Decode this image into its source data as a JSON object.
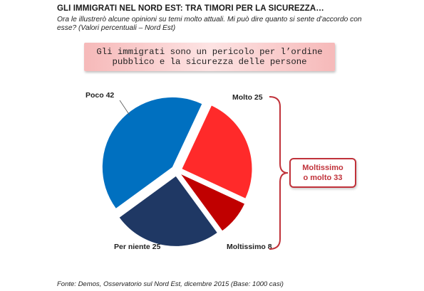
{
  "header": {
    "title": "GLI IMMIGRATI  NEL NORD EST: TRA TIMORI PER LA SICUREZZA…",
    "subtitle": "Ora le illustrerò alcune opinioni su temi molto attuali. Mi può dire quanto si sente d’accordo con esse? (Valori percentuali – Nord Est)"
  },
  "banner": {
    "line1": "Gli immigrati sono un pericolo per l’ordine",
    "line2": "pubblico e la sicurezza delle persone"
  },
  "chart_data": {
    "type": "pie",
    "unit": "%",
    "slices": [
      {
        "label": "Molto",
        "display": "Molto 25",
        "value": 25,
        "color": "#ff2a2a"
      },
      {
        "label": "Moltissimo",
        "display": "Moltissimo  8",
        "value": 8,
        "color": "#c00000"
      },
      {
        "label": "Per niente",
        "display": "Per niente 25",
        "value": 25,
        "color": "#1f3864"
      },
      {
        "label": "Poco",
        "display": "Poco  42",
        "value": 42,
        "color": "#0070c0"
      }
    ],
    "exploded": "all"
  },
  "summary": {
    "line1": "Moltissimo",
    "line2": "o molto 33",
    "bracket_color": "#c0323a"
  },
  "footer": {
    "source": "Fonte: Demos, Osservatorio sul Nord Est, dicembre 2015 (Base: 1000 casi)"
  }
}
